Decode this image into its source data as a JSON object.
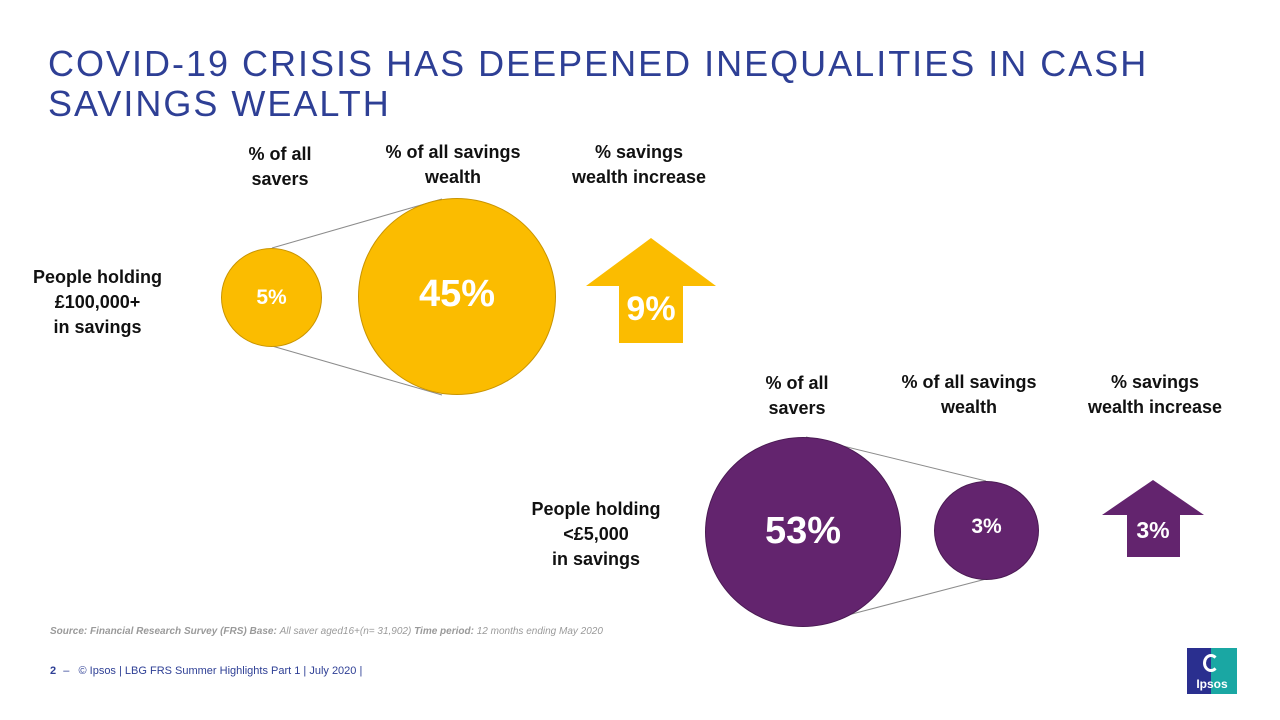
{
  "title": {
    "line1": "COVID-19 CRISIS HAS DEEPENED INEQUALITIES IN CASH",
    "line2": "SAVINGS WEALTH"
  },
  "top_group": {
    "row_label": [
      "People holding",
      "£100,000+",
      "in savings"
    ],
    "col_savers": [
      "% of all",
      "savers"
    ],
    "col_wealth": [
      "% of all savings",
      "wealth"
    ],
    "col_increase": [
      "% savings",
      "wealth increase"
    ],
    "savers_value": "5%",
    "wealth_value": "45%",
    "increase_value": "9%",
    "color": "#fbbc00"
  },
  "bottom_group": {
    "row_label": [
      "People holding",
      "<£5,000",
      "in savings"
    ],
    "col_savers": [
      "% of all",
      "savers"
    ],
    "col_wealth": [
      "% of all savings",
      "wealth"
    ],
    "col_increase": [
      "% savings",
      "wealth increase"
    ],
    "savers_value": "53%",
    "wealth_value": "3%",
    "increase_value": "3%",
    "color": "#63246e"
  },
  "source": {
    "source_label": "Source:",
    "source_text": "Financial Research Survey (FRS)",
    "base_label": "Base:",
    "base_text": "All saver aged16+(n= 31,902)",
    "period_label": "Time period:",
    "period_text": "12 months ending May 2020"
  },
  "footer": {
    "page": "2",
    "dash": "–",
    "text": "© Ipsos | LBG FRS Summer Highlights Part 1 | July 2020 |"
  },
  "logo": {
    "text": "Ipsos"
  }
}
